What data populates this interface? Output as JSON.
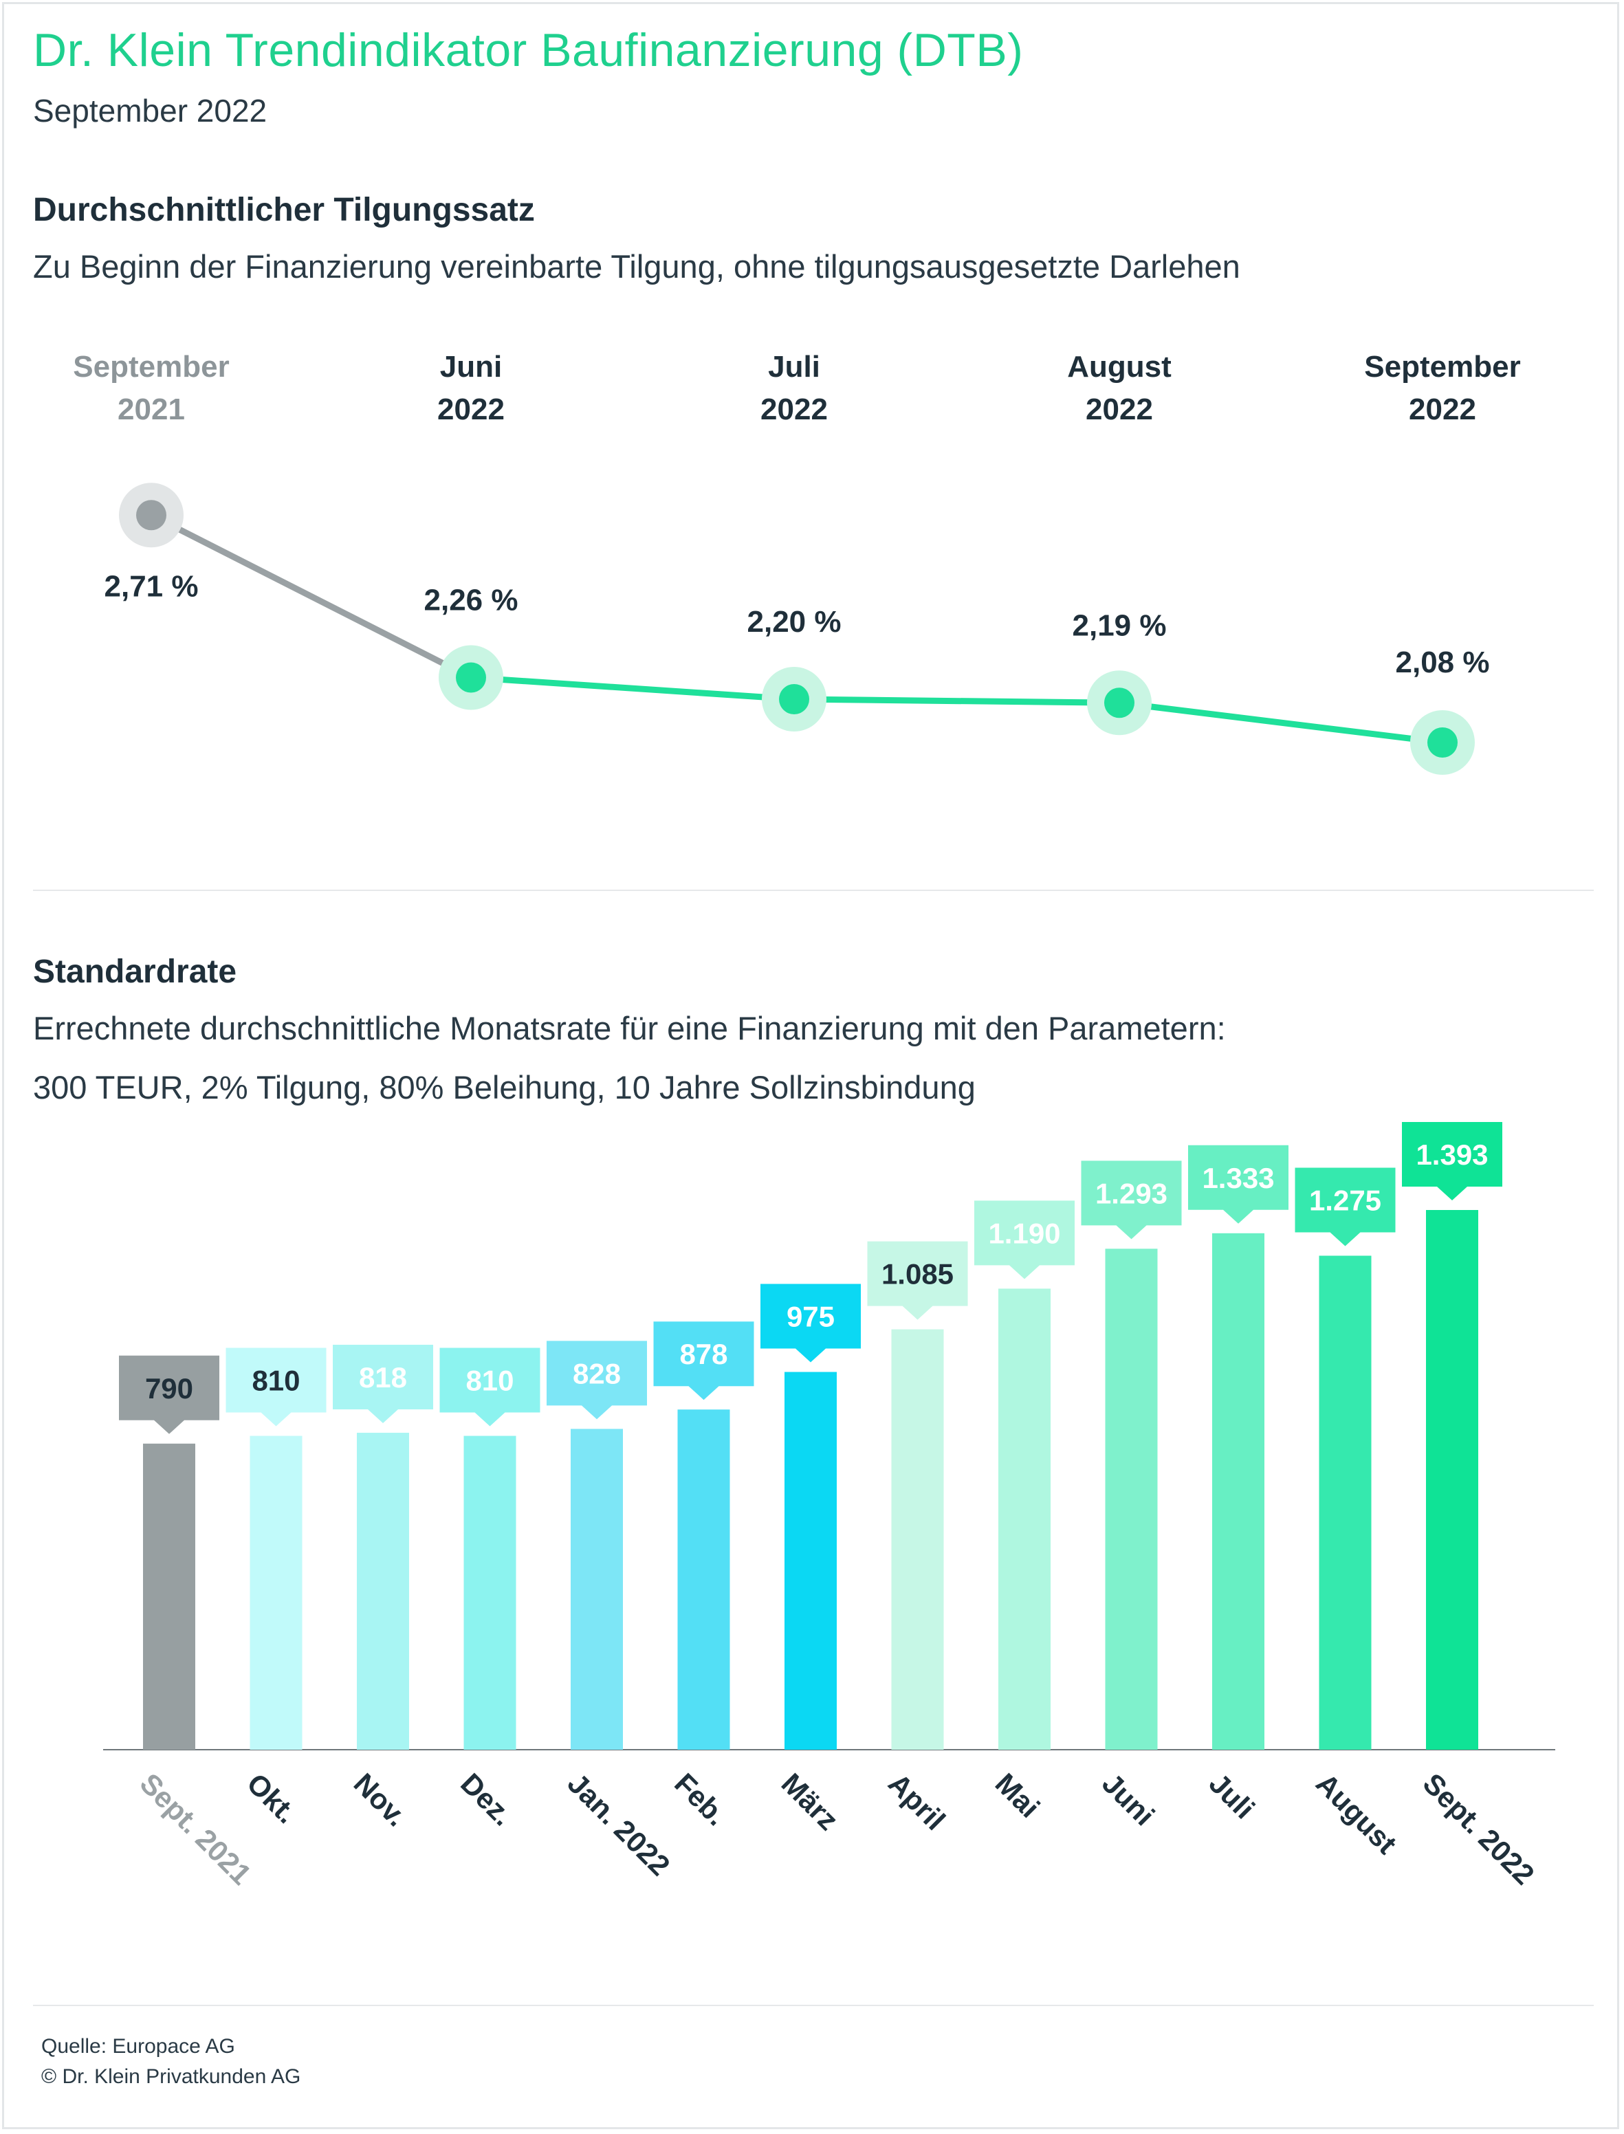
{
  "header": {
    "title": "Dr. Klein Trendindikator Baufinanzierung (DTB)",
    "subtitle": "September 2022"
  },
  "section1": {
    "title": "Durchschnittlicher Tilgungssatz",
    "description": "Zu Beginn der Finanzierung vereinbarte Tilgung, ohne tilgungsausgesetzte Darlehen"
  },
  "section2": {
    "title": "Standardrate",
    "description_line1": "Errechnete durchschnittliche Monatsrate für eine Finanzierung mit den Parametern:",
    "description_line2": "300 TEUR, 2% Tilgung, 80% Beleihung, 10 Jahre Sollzinsbindung"
  },
  "footer": {
    "source": "Quelle: Europace AG",
    "copyright": "© Dr. Klein Privatkunden AG"
  },
  "colors": {
    "title": "#1fd08e",
    "text": "#1f2f3a",
    "grey_line": "#9aa1a4",
    "grey_halo": "#e2e5e6",
    "grey_point": "#9aa1a4",
    "green_line": "#1fe09a",
    "green_halo": "#c9f5e3",
    "gray_label": "#8d9599"
  },
  "chart_data": [
    {
      "type": "line",
      "title": "Durchschnittlicher Tilgungssatz",
      "categories": [
        [
          "September",
          "2021"
        ],
        [
          "Juni",
          "2022"
        ],
        [
          "Juli",
          "2022"
        ],
        [
          "August",
          "2022"
        ],
        [
          "September",
          "2022"
        ]
      ],
      "values": [
        2.71,
        2.26,
        2.2,
        2.19,
        2.08
      ],
      "value_labels": [
        "2,71 %",
        "2,26 %",
        "2,20 %",
        "2,19 %",
        "2,08 %"
      ],
      "unit": "%",
      "grid": false
    },
    {
      "type": "bar",
      "title": "Standardrate",
      "categories": [
        "Sept. 2021",
        "Okt.",
        "Nov.",
        "Dez.",
        "Jan. 2022",
        "Feb.",
        "März",
        "April",
        "Mai",
        "Juni",
        "Juli",
        "August",
        "Sept. 2022"
      ],
      "values": [
        790,
        810,
        818,
        810,
        828,
        878,
        975,
        1085,
        1190,
        1293,
        1333,
        1275,
        1393
      ],
      "value_labels": [
        "790",
        "810",
        "818",
        "810",
        "828",
        "878",
        "975",
        "1.085",
        "1.190",
        "1.293",
        "1.333",
        "1.275",
        "1.393"
      ],
      "bar_colors": [
        "#979fa1",
        "#c1fafa",
        "#a8f5f3",
        "#8cf3ef",
        "#7de6f6",
        "#53dff5",
        "#0bd8f3",
        "#c6f7e6",
        "#aff7e0",
        "#7ff1cc",
        "#67efc3",
        "#35e9ae",
        "#0fe396"
      ],
      "bubble_colors": [
        "#979fa1",
        "#c1fafa",
        "#a8f5f3",
        "#8cf3ef",
        "#7de6f6",
        "#53dff5",
        "#0bd8f3",
        "#c6f7e6",
        "#aff7e0",
        "#7ff1cc",
        "#67efc3",
        "#35e9ae",
        "#0fe396"
      ],
      "label_colors": [
        "#1f2f3a",
        "#1f2f3a",
        "#ffffff",
        "#ffffff",
        "#ffffff",
        "#ffffff",
        "#ffffff",
        "#1f2f3a",
        "#ffffff",
        "#ffffff",
        "#ffffff",
        "#ffffff",
        "#ffffff"
      ],
      "axis_label_colors": [
        "#9aa1a4",
        "#1f2f3a",
        "#1f2f3a",
        "#1f2f3a",
        "#1f2f3a",
        "#1f2f3a",
        "#1f2f3a",
        "#1f2f3a",
        "#1f2f3a",
        "#1f2f3a",
        "#1f2f3a",
        "#1f2f3a",
        "#1f2f3a"
      ],
      "grid": false
    }
  ]
}
